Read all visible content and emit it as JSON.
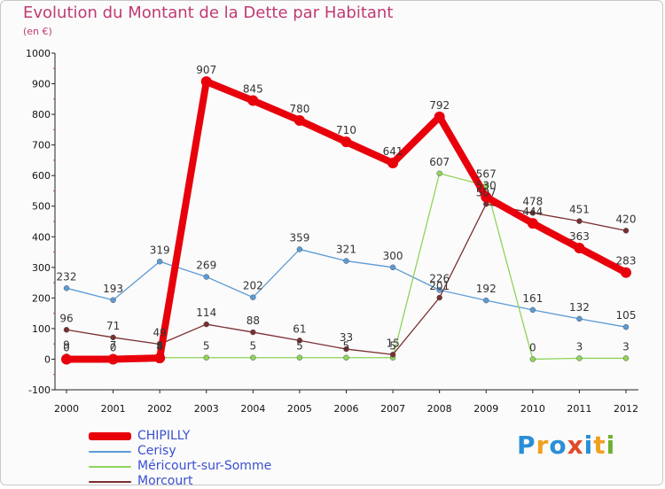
{
  "header": {
    "title": "Evolution du Montant de la Dette par Habitant",
    "subtitle": "(en €)"
  },
  "logo": {
    "letters": [
      "P",
      "r",
      "o",
      "x",
      "i",
      "t",
      "i"
    ]
  },
  "chart_data": {
    "type": "line",
    "title": "Evolution du Montant de la Dette par Habitant",
    "subtitle": "(en €)",
    "xlabel": "",
    "ylabel": "",
    "x": [
      "2000",
      "2001",
      "2002",
      "2003",
      "2004",
      "2005",
      "2006",
      "2007",
      "2008",
      "2009",
      "2010",
      "2011",
      "2012"
    ],
    "ylim": [
      -100,
      1000
    ],
    "yticks": [
      -100,
      0,
      100,
      200,
      300,
      400,
      500,
      600,
      700,
      800,
      900,
      1000
    ],
    "grid": false,
    "legend_position": "bottom-left",
    "series": [
      {
        "name": "CHIPILLY",
        "color": "#e8000b",
        "values": [
          0,
          0,
          4,
          907,
          845,
          780,
          710,
          641,
          792,
          530,
          444,
          363,
          283
        ],
        "labels": [
          "0",
          "0",
          "4",
          "907",
          "845",
          "780",
          "710",
          "641",
          "792",
          "530",
          "444",
          "363",
          "283"
        ]
      },
      {
        "name": "Cerisy",
        "color": "#5b9bd5",
        "values": [
          232,
          193,
          319,
          269,
          202,
          359,
          321,
          300,
          226,
          192,
          161,
          132,
          105
        ],
        "labels": [
          "232",
          "193",
          "319",
          "269",
          "202",
          "359",
          "321",
          "300",
          "226",
          "192",
          "161",
          "132",
          "105"
        ]
      },
      {
        "name": "Méricourt-sur-Somme",
        "color": "#8fd45a",
        "values": [
          9,
          7,
          5,
          5,
          5,
          5,
          5,
          5,
          607,
          567,
          0,
          3,
          3
        ],
        "labels": [
          "9",
          "7",
          "5",
          "5",
          "5",
          "5",
          "5",
          "5",
          "607",
          "567",
          "0",
          "3",
          "3"
        ]
      },
      {
        "name": "Morcourt",
        "color": "#7a2e30",
        "values": [
          96,
          71,
          49,
          114,
          88,
          61,
          33,
          15,
          201,
          507,
          478,
          451,
          420
        ],
        "labels": [
          "96",
          "71",
          "49",
          "114",
          "88",
          "61",
          "33",
          "15",
          "201",
          "507",
          "478",
          "451",
          "420"
        ]
      }
    ]
  }
}
